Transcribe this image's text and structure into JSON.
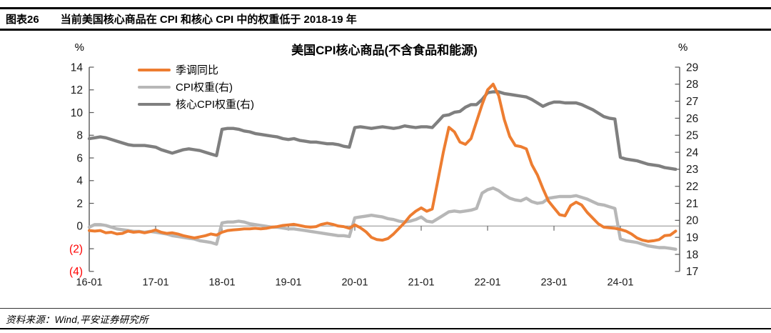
{
  "header": {
    "figure_label": "图表26",
    "title": "当前美国核心商品在 CPI 和核心 CPI 中的权重低于 2018-19 年"
  },
  "footer": {
    "source": "资料来源：Wind,平安证券研究所"
  },
  "colors": {
    "accent_orange": "#ED7D31",
    "light_gray": "#B7B7B7",
    "dark_gray": "#7F7F7F",
    "negative_tick_red": "#FF0000",
    "axis_line": "#595959",
    "zero_line": "#8C8C8C"
  },
  "chart_data": {
    "type": "line",
    "title": "美国CPI核心商品(不含食品和能源)",
    "legend_position": "top-left",
    "grid": false,
    "zero_line": true,
    "left_axis": {
      "unit": "%",
      "min": -4,
      "max": 14,
      "ticks": [
        {
          "v": 14,
          "label": "14"
        },
        {
          "v": 12,
          "label": "12"
        },
        {
          "v": 10,
          "label": "10"
        },
        {
          "v": 8,
          "label": "8"
        },
        {
          "v": 6,
          "label": "6"
        },
        {
          "v": 4,
          "label": "4"
        },
        {
          "v": 2,
          "label": "2"
        },
        {
          "v": 0,
          "label": "0"
        },
        {
          "v": -2,
          "label": "(2)"
        },
        {
          "v": -4,
          "label": "(4)"
        }
      ]
    },
    "right_axis": {
      "unit": "%",
      "min": 17,
      "max": 29,
      "ticks": [
        {
          "v": 29,
          "label": "29"
        },
        {
          "v": 28,
          "label": "28"
        },
        {
          "v": 27,
          "label": "27"
        },
        {
          "v": 26,
          "label": "26"
        },
        {
          "v": 25,
          "label": "25"
        },
        {
          "v": 24,
          "label": "24"
        },
        {
          "v": 23,
          "label": "23"
        },
        {
          "v": 22,
          "label": "22"
        },
        {
          "v": 21,
          "label": "21"
        },
        {
          "v": 20,
          "label": "20"
        },
        {
          "v": 19,
          "label": "19"
        },
        {
          "v": 18,
          "label": "18"
        },
        {
          "v": 17,
          "label": "17"
        }
      ]
    },
    "x_ticks": [
      {
        "i": 0,
        "label": "16-01"
      },
      {
        "i": 12,
        "label": "17-01"
      },
      {
        "i": 24,
        "label": "18-01"
      },
      {
        "i": 36,
        "label": "19-01"
      },
      {
        "i": 48,
        "label": "20-01"
      },
      {
        "i": 60,
        "label": "21-01"
      },
      {
        "i": 72,
        "label": "22-01"
      },
      {
        "i": 84,
        "label": "23-01"
      },
      {
        "i": 96,
        "label": "24-01"
      }
    ],
    "x": [
      "16-01",
      "16-02",
      "16-03",
      "16-04",
      "16-05",
      "16-06",
      "16-07",
      "16-08",
      "16-09",
      "16-10",
      "16-11",
      "16-12",
      "17-01",
      "17-02",
      "17-03",
      "17-04",
      "17-05",
      "17-06",
      "17-07",
      "17-08",
      "17-09",
      "17-10",
      "17-11",
      "17-12",
      "18-01",
      "18-02",
      "18-03",
      "18-04",
      "18-05",
      "18-06",
      "18-07",
      "18-08",
      "18-09",
      "18-10",
      "18-11",
      "18-12",
      "19-01",
      "19-02",
      "19-03",
      "19-04",
      "19-05",
      "19-06",
      "19-07",
      "19-08",
      "19-09",
      "19-10",
      "19-11",
      "19-12",
      "20-01",
      "20-02",
      "20-03",
      "20-04",
      "20-05",
      "20-06",
      "20-07",
      "20-08",
      "20-09",
      "20-10",
      "20-11",
      "20-12",
      "21-01",
      "21-02",
      "21-03",
      "21-04",
      "21-05",
      "21-06",
      "21-07",
      "21-08",
      "21-09",
      "21-10",
      "21-11",
      "21-12",
      "22-01",
      "22-02",
      "22-03",
      "22-04",
      "22-05",
      "22-06",
      "22-07",
      "22-08",
      "22-09",
      "22-10",
      "22-11",
      "22-12",
      "23-01",
      "23-02",
      "23-03",
      "23-04",
      "23-05",
      "23-06",
      "23-07",
      "23-08",
      "23-09",
      "23-10",
      "23-11",
      "23-12",
      "24-01",
      "24-02",
      "24-03",
      "24-04",
      "24-05",
      "24-06",
      "24-07",
      "24-08",
      "24-09",
      "24-10",
      "24-11"
    ],
    "series": [
      {
        "name": "季调同比",
        "axis": "left",
        "color": "#ED7D31",
        "values": [
          -0.4,
          -0.45,
          -0.4,
          -0.6,
          -0.55,
          -0.7,
          -0.65,
          -0.45,
          -0.55,
          -0.5,
          -0.6,
          -0.5,
          -0.35,
          -0.55,
          -0.65,
          -0.6,
          -0.7,
          -0.85,
          -0.95,
          -1.05,
          -0.95,
          -0.85,
          -0.7,
          -0.8,
          -0.55,
          -0.4,
          -0.35,
          -0.3,
          -0.25,
          -0.25,
          -0.2,
          -0.25,
          -0.2,
          -0.1,
          -0.05,
          0.05,
          0.1,
          0.15,
          0.05,
          -0.05,
          -0.1,
          -0.05,
          0.15,
          0.25,
          0.15,
          0,
          -0.05,
          -0.2,
          0.1,
          -0.15,
          -0.5,
          -1,
          -1.2,
          -1.25,
          -1.1,
          -0.7,
          -0.2,
          0.3,
          0.9,
          1.3,
          1.6,
          1.3,
          1.5,
          4,
          6.5,
          8.7,
          8.3,
          7.4,
          7.2,
          7.7,
          9.2,
          10.7,
          12,
          12.5,
          11.5,
          9.4,
          7.9,
          7.1,
          7,
          6.8,
          5.4,
          4.5,
          3.3,
          2.2,
          1.6,
          1,
          0.9,
          1.8,
          2.1,
          1.85,
          1.2,
          0.7,
          0.2,
          -0.1,
          -0.15,
          -0.2,
          -0.3,
          -0.45,
          -0.7,
          -1.05,
          -1.25,
          -1.35,
          -1.3,
          -1.2,
          -0.85,
          -0.8,
          -0.45
        ]
      },
      {
        "name": "CPI权重(右)",
        "axis": "right",
        "color": "#B7B7B7",
        "values": [
          19.6,
          19.75,
          19.75,
          19.7,
          19.6,
          19.5,
          19.45,
          19.4,
          19.35,
          19.35,
          19.3,
          19.35,
          19.3,
          19.25,
          19.2,
          19.1,
          19.05,
          19,
          18.95,
          18.9,
          18.8,
          18.75,
          18.7,
          18.6,
          19.85,
          19.9,
          19.9,
          19.95,
          19.9,
          19.8,
          19.75,
          19.7,
          19.65,
          19.6,
          19.6,
          19.55,
          19.5,
          19.5,
          19.45,
          19.4,
          19.35,
          19.3,
          19.25,
          19.2,
          19.15,
          19.1,
          19.1,
          19.05,
          20.15,
          20.2,
          20.25,
          20.3,
          20.25,
          20.2,
          20.1,
          20.05,
          19.95,
          19.9,
          19.95,
          20.05,
          20.2,
          19.95,
          19.9,
          20.1,
          20.3,
          20.5,
          20.55,
          20.5,
          20.55,
          20.6,
          20.7,
          21.6,
          21.8,
          21.9,
          21.75,
          21.5,
          21.3,
          21.2,
          21.15,
          21.3,
          21.1,
          21,
          21.05,
          21.3,
          21.35,
          21.4,
          21.4,
          21.4,
          21.45,
          21.35,
          21.25,
          21.1,
          20.95,
          20.9,
          20.8,
          20.7,
          18.9,
          18.8,
          18.75,
          18.7,
          18.6,
          18.5,
          18.45,
          18.4,
          18.4,
          18.35,
          18.3
        ]
      },
      {
        "name": "核心CPI权重(右)",
        "axis": "right",
        "color": "#7F7F7F",
        "values": [
          24.8,
          24.85,
          24.9,
          24.85,
          24.75,
          24.65,
          24.55,
          24.45,
          24.4,
          24.4,
          24.4,
          24.35,
          24.3,
          24.15,
          24.05,
          23.95,
          24.05,
          24.15,
          24.2,
          24.15,
          24.1,
          24,
          23.9,
          23.8,
          25.35,
          25.4,
          25.4,
          25.35,
          25.25,
          25.2,
          25.1,
          25.05,
          25,
          24.95,
          24.9,
          24.8,
          24.75,
          24.8,
          24.7,
          24.65,
          24.6,
          24.6,
          24.55,
          24.5,
          24.5,
          24.45,
          24.35,
          24.3,
          25.45,
          25.5,
          25.45,
          25.4,
          25.45,
          25.5,
          25.45,
          25.4,
          25.45,
          25.55,
          25.5,
          25.45,
          25.5,
          25.5,
          25.45,
          25.8,
          26.15,
          26.2,
          26.35,
          26.4,
          26.65,
          26.8,
          26.8,
          27.1,
          27.5,
          27.55,
          27.55,
          27.45,
          27.4,
          27.35,
          27.3,
          27.25,
          27.1,
          26.9,
          26.7,
          26.85,
          26.95,
          26.95,
          26.9,
          26.9,
          26.9,
          26.8,
          26.65,
          26.5,
          26.3,
          26.1,
          26,
          25.95,
          23.7,
          23.6,
          23.55,
          23.5,
          23.4,
          23.3,
          23.25,
          23.2,
          23.1,
          23.05,
          23
        ]
      }
    ]
  }
}
